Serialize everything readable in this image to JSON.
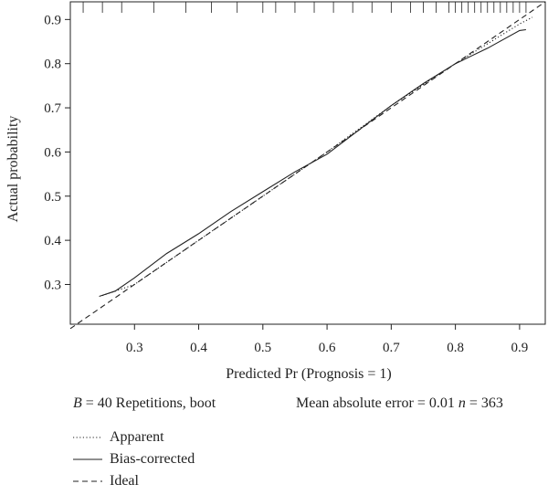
{
  "chart_data": {
    "type": "line",
    "xlabel": "Predicted Pr (Prognosis = 1)",
    "ylabel": "Actual probability",
    "xlim": [
      0.2,
      0.94
    ],
    "ylim": [
      0.21,
      0.94
    ],
    "x_ticks": [
      "0.3",
      "0.4",
      "0.5",
      "0.6",
      "0.7",
      "0.8",
      "0.9"
    ],
    "y_ticks": [
      "0.3",
      "0.4",
      "0.5",
      "0.6",
      "0.7",
      "0.8",
      "0.9"
    ],
    "series": [
      {
        "name": "Apparent",
        "style": "dotted",
        "x": [
          0.25,
          0.3,
          0.4,
          0.5,
          0.6,
          0.7,
          0.8,
          0.9,
          0.92
        ],
        "y": [
          0.275,
          0.3,
          0.4,
          0.5,
          0.6,
          0.705,
          0.8,
          0.89,
          0.905
        ]
      },
      {
        "name": "Bias-corrected",
        "style": "solid",
        "x": [
          0.245,
          0.27,
          0.3,
          0.35,
          0.4,
          0.45,
          0.5,
          0.55,
          0.6,
          0.65,
          0.7,
          0.75,
          0.8,
          0.85,
          0.9,
          0.91
        ],
        "y": [
          0.273,
          0.285,
          0.315,
          0.37,
          0.415,
          0.465,
          0.51,
          0.555,
          0.595,
          0.65,
          0.705,
          0.755,
          0.8,
          0.835,
          0.875,
          0.877
        ]
      },
      {
        "name": "Ideal",
        "style": "dashed",
        "x": [
          0.2,
          0.94
        ],
        "y": [
          0.2,
          0.94
        ]
      }
    ],
    "rug": [
      0.22,
      0.25,
      0.28,
      0.33,
      0.38,
      0.42,
      0.46,
      0.5,
      0.52,
      0.55,
      0.58,
      0.61,
      0.64,
      0.67,
      0.7,
      0.73,
      0.75,
      0.77,
      0.79,
      0.8,
      0.81,
      0.82,
      0.83,
      0.84,
      0.85,
      0.86,
      0.87,
      0.88,
      0.89,
      0.9,
      0.91
    ],
    "grid": false
  },
  "footer": {
    "b_symbol": "B",
    "b_text": " = 40 Repetitions, boot",
    "mae_text": "Mean absolute error = 0.01 ",
    "n_symbol": "n",
    "n_text": " = 363"
  },
  "legend": {
    "apparent": "Apparent",
    "bias_corrected": "Bias-corrected",
    "ideal": "Ideal"
  }
}
